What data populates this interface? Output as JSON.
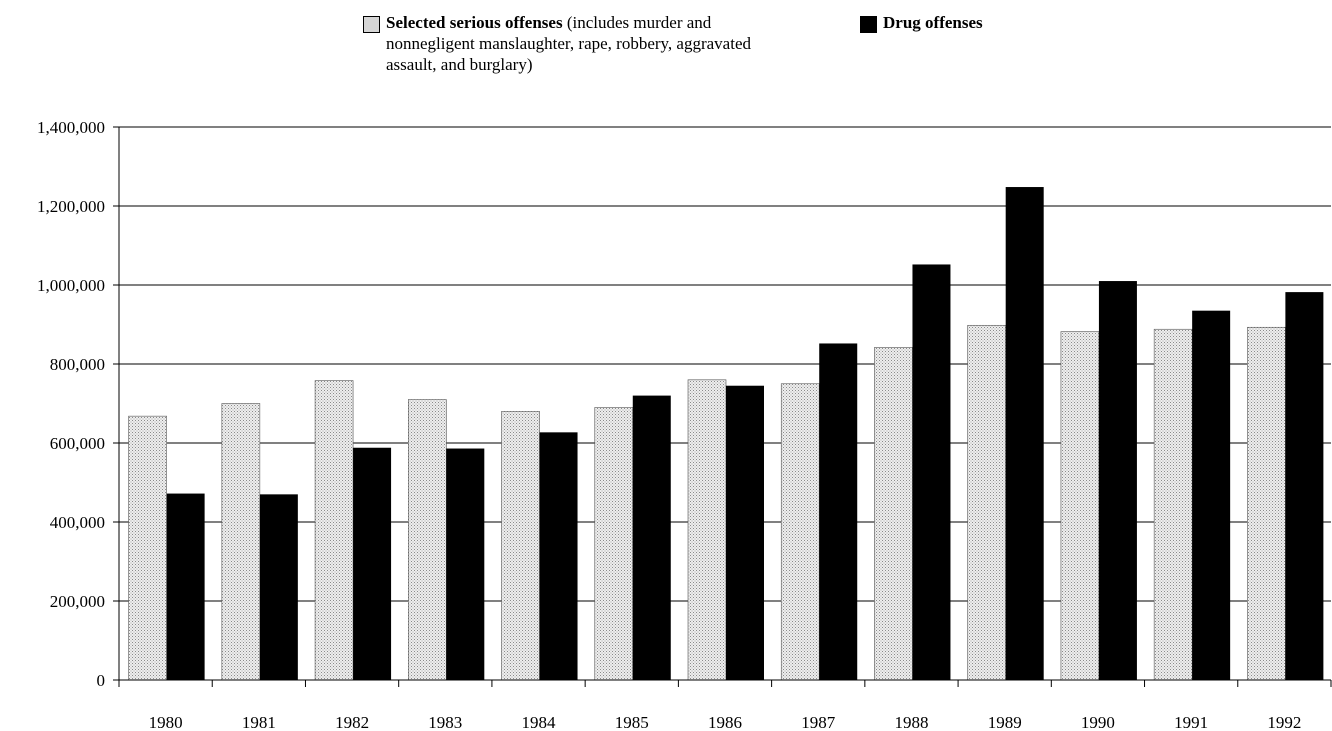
{
  "chart_data": {
    "type": "bar",
    "categories": [
      "1980",
      "1981",
      "1982",
      "1983",
      "1984",
      "1985",
      "1986",
      "1987",
      "1988",
      "1989",
      "1990",
      "1991",
      "1992"
    ],
    "series": [
      {
        "name": "Selected serious offenses",
        "name_detail": "(includes murder and nonnegligent manslaughter, rape, robbery, aggravated assault, and burglary)",
        "color": "#d6d6d6",
        "values": [
          668000,
          700000,
          758000,
          710000,
          680000,
          690000,
          760000,
          750000,
          842000,
          898000,
          882000,
          888000,
          893000
        ]
      },
      {
        "name": "Drug offenses",
        "color": "#000000",
        "values": [
          472000,
          470000,
          588000,
          586000,
          627000,
          720000,
          745000,
          852000,
          1052000,
          1248000,
          1010000,
          935000,
          982000
        ]
      }
    ],
    "ylim": [
      0,
      1400000
    ],
    "yticks": [
      0,
      200000,
      400000,
      600000,
      800000,
      1000000,
      1200000,
      1400000
    ],
    "ytick_labels": [
      "0",
      "200,000",
      "400,000",
      "600,000",
      "800,000",
      "1,000,000",
      "1,200,000",
      "1,400,000"
    ],
    "grid": true,
    "legend_position": "top-center",
    "title": "",
    "xlabel": "",
    "ylabel": ""
  }
}
